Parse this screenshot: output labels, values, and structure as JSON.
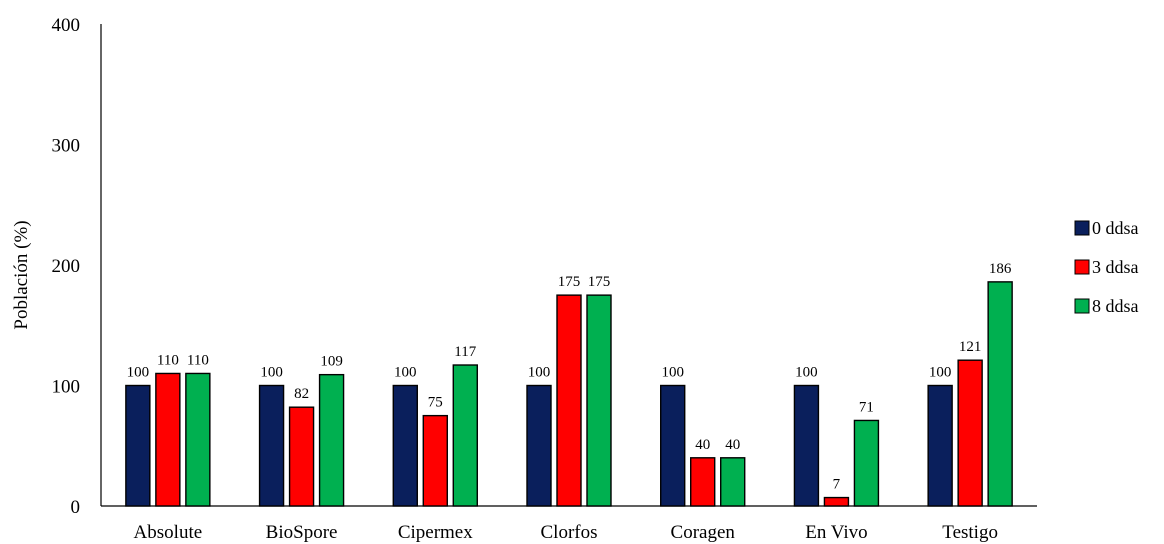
{
  "chart_data": {
    "type": "bar",
    "categories": [
      "Absolute",
      "BioSpore",
      "Cipermex",
      "Clorfos",
      "Coragen",
      "En Vivo",
      "Testigo"
    ],
    "series": [
      {
        "name": "0 ddsa",
        "color": "#0a1f5c",
        "values": [
          100,
          100,
          100,
          100,
          100,
          100,
          100
        ]
      },
      {
        "name": "3 ddsa",
        "color": "#ff0000",
        "values": [
          110,
          82,
          75,
          175,
          40,
          7,
          121
        ]
      },
      {
        "name": "8 ddsa",
        "color": "#00b050",
        "values": [
          110,
          109,
          117,
          175,
          40,
          71,
          186
        ]
      }
    ],
    "ylabel": "Población (%)",
    "xlabel": "",
    "ylim": [
      0,
      400
    ],
    "yticks": [
      "0",
      "100",
      "200",
      "300",
      "400"
    ],
    "grid": false,
    "legend_position": "right"
  }
}
